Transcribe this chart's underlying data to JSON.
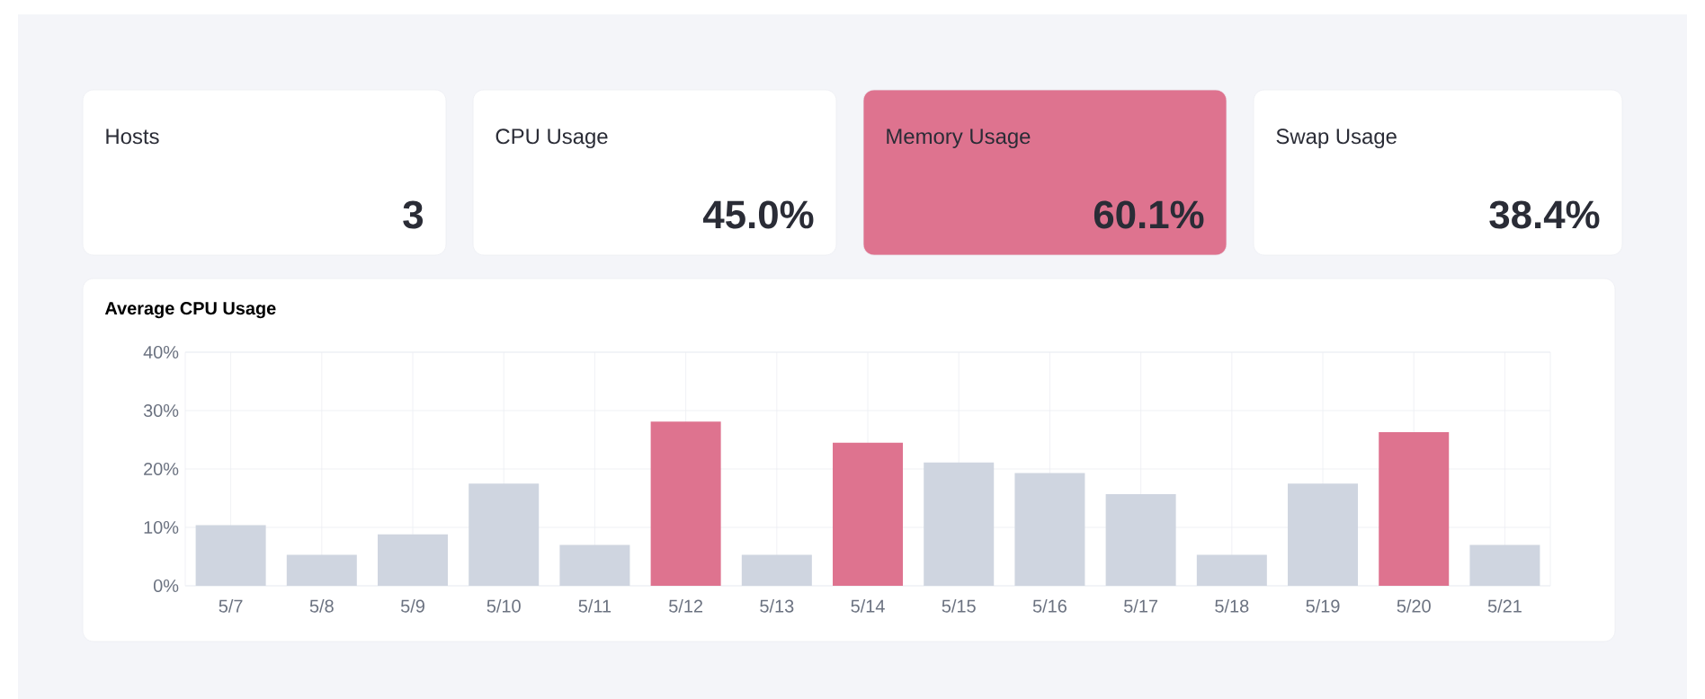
{
  "chart_data": [
    {
      "type": "other",
      "categories": [
        "Hosts",
        "CPU Usage",
        "Memory Usage",
        "Swap Usage"
      ],
      "value_labels": [
        "3",
        "45.0%",
        "60.1%",
        "38.4%"
      ],
      "colors": [
        "#ffffff",
        "#ffffff",
        "#de738f",
        "#ffffff"
      ]
    },
    {
      "type": "bar",
      "title": "Average CPU Usage",
      "categories": [
        "5/7",
        "5/8",
        "5/9",
        "5/10",
        "5/11",
        "5/12",
        "5/13",
        "5/14",
        "5/15",
        "5/16",
        "5/17",
        "5/18",
        "5/19",
        "5/20",
        "5/21"
      ],
      "values": [
        10.4,
        5.3,
        8.8,
        17.5,
        7.0,
        28.1,
        5.3,
        24.5,
        21.1,
        19.3,
        15.7,
        5.3,
        17.5,
        26.3,
        7.0
      ],
      "colors": [
        "#cfd5e0",
        "#cfd5e0",
        "#cfd5e0",
        "#cfd5e0",
        "#cfd5e0",
        "#de738f",
        "#cfd5e0",
        "#de738f",
        "#cfd5e0",
        "#cfd5e0",
        "#cfd5e0",
        "#cfd5e0",
        "#cfd5e0",
        "#de738f",
        "#cfd5e0"
      ],
      "ylim": [
        0,
        40
      ],
      "yticks": [
        {
          "value": 0,
          "label": "0%"
        },
        {
          "value": 10,
          "label": "10%"
        },
        {
          "value": 20,
          "label": "20%"
        },
        {
          "value": 30,
          "label": "30%"
        },
        {
          "value": 40,
          "label": "40%"
        }
      ],
      "grid": true
    }
  ]
}
